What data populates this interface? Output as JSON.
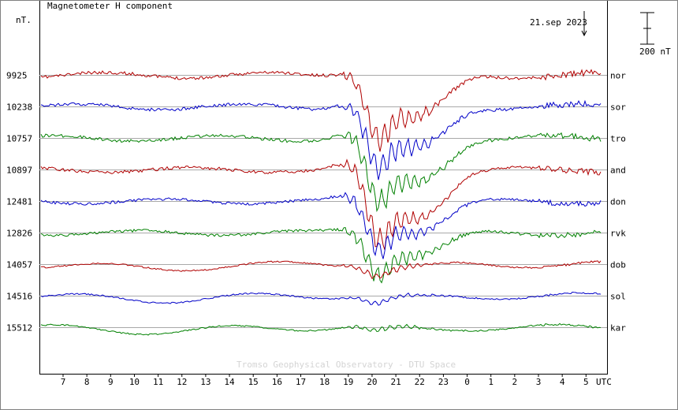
{
  "chart_data": {
    "type": "line",
    "title": "Magnetometer H component",
    "unit_label": "nT.",
    "date_label": "21.sep 2023",
    "scale_label": "200 nT",
    "scale_nt": 200,
    "xlabel": "UTC",
    "x_ticks": [
      "7",
      "8",
      "9",
      "10",
      "11",
      "12",
      "13",
      "14",
      "15",
      "16",
      "17",
      "18",
      "19",
      "20",
      "21",
      "22",
      "23",
      "0",
      "1",
      "2",
      "3",
      "4",
      "5"
    ],
    "credit": "Tromso Geophysical Observatory - DTU Space",
    "grid": true,
    "colors": {
      "red": "#b00000",
      "blue": "#0000c8",
      "green": "#008000"
    },
    "series": [
      {
        "name": "nor",
        "baseline": "9925",
        "color": "red"
      },
      {
        "name": "sor",
        "baseline": "10238",
        "color": "blue"
      },
      {
        "name": "tro",
        "baseline": "10757",
        "color": "green"
      },
      {
        "name": "and",
        "baseline": "10897",
        "color": "red"
      },
      {
        "name": "don",
        "baseline": "12481",
        "color": "blue"
      },
      {
        "name": "rvk",
        "baseline": "12826",
        "color": "green"
      },
      {
        "name": "dob",
        "baseline": "14057",
        "color": "red"
      },
      {
        "name": "sol",
        "baseline": "14516",
        "color": "blue"
      },
      {
        "name": "kar",
        "baseline": "15512",
        "color": "green"
      }
    ]
  }
}
